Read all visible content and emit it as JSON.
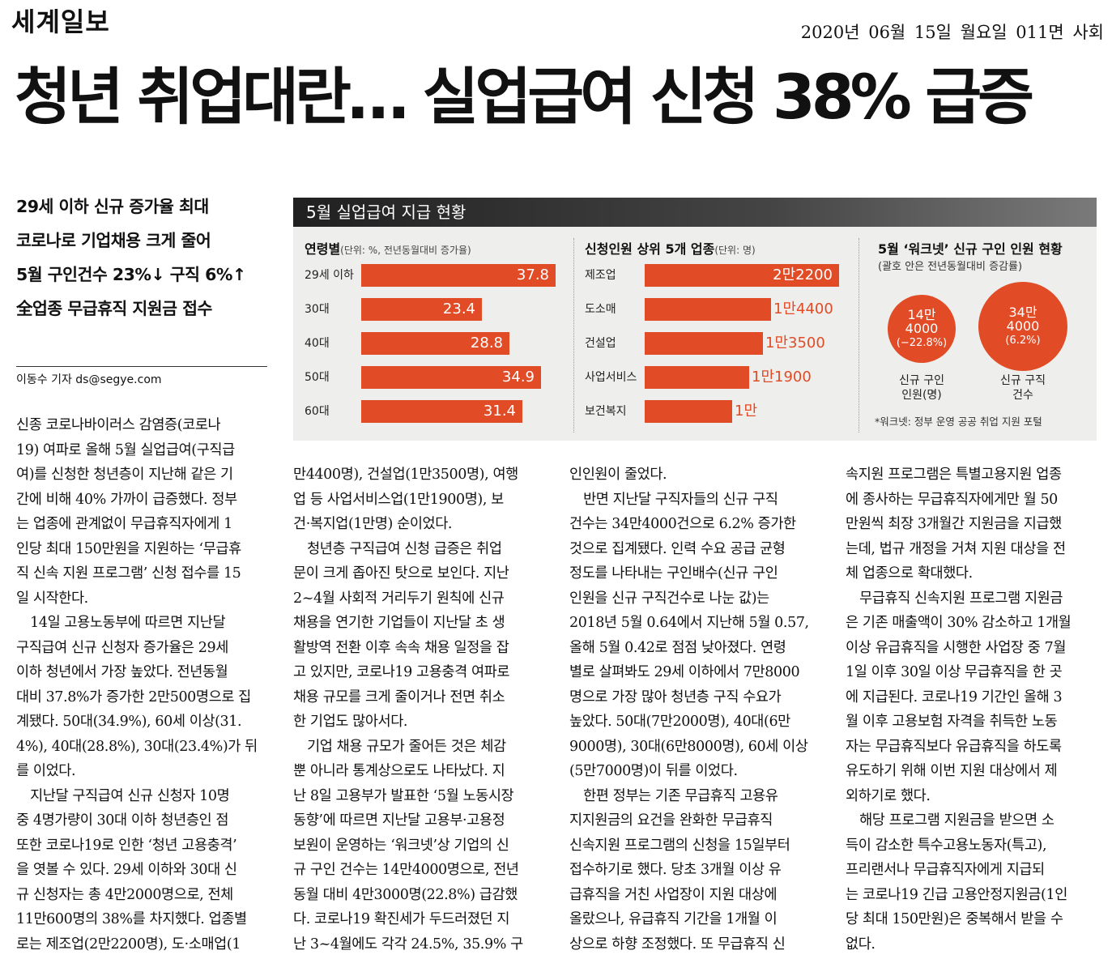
{
  "masthead": "세계일보",
  "dateline": "2020년 06월 15일 월요일 011면 사회",
  "headline": "청년 취업대란… 실업급여 신청 38% 급증",
  "subheads": [
    "29세 이하 신규 증가율 최대",
    "코로나로 기업채용 크게 줄어",
    "5월 구인건수 23%↓ 구직 6%↑",
    "全업종 무급휴직 지원금 접수"
  ],
  "byline": "이동수 기자 ds@segye.com",
  "infographic": {
    "title": "5월 실업급여 지급 현황",
    "age_section": {
      "title": "연령별",
      "unit": "(단위: %, 전년동월대비 증가율)"
    },
    "industry_section": {
      "title": "신청인원 상위 5개 업종",
      "unit": "(단위: 명)"
    },
    "worknet_section": {
      "title": "5월 ‘워크넷’ 신규 구인 인원 현황",
      "note": "(괄호 안은 전년동월대비 증감률)",
      "circles": [
        {
          "line1": "14만",
          "line2": "4000",
          "pct": "(−22.8%)",
          "label1": "신규 구인",
          "label2": "인원(명)"
        },
        {
          "line1": "34만",
          "line2": "4000",
          "pct": "(6.2%)",
          "label1": "신규 구직",
          "label2": "건수"
        }
      ],
      "footnote": "*워크넷: 정부 운영 공공 취업 지원 포털"
    }
  },
  "chart_data": [
    {
      "type": "bar",
      "title": "연령별",
      "categories": [
        "29세 이하",
        "30대",
        "40대",
        "50대",
        "60대"
      ],
      "values": [
        37.8,
        23.4,
        28.8,
        34.9,
        31.4
      ],
      "labels": [
        "37.8",
        "23.4",
        "28.8",
        "34.9",
        "31.4"
      ],
      "orientation": "horizontal"
    },
    {
      "type": "bar",
      "title": "신청인원 상위 5개 업종",
      "categories": [
        "제조업",
        "도소매",
        "건설업",
        "사업서비스",
        "보건복지"
      ],
      "values": [
        22200,
        14400,
        13500,
        11900,
        10000
      ],
      "labels": [
        "2만2200",
        "1만4400",
        "1만3500",
        "1만1900",
        "1만"
      ],
      "orientation": "horizontal"
    }
  ],
  "columns": [
    [
      "신종 코로나바이러스 감염증(코로나",
      "19) 여파로 올해 5월 실업급여(구직급",
      "여)를 신청한 청년층이 지난해 같은 기",
      "간에 비해 40% 가까이 급증했다. 정부",
      "는 업종에 관계없이 무급휴직자에게 1",
      "인당 최대 150만원을 지원하는 ‘무급휴",
      "직 신속 지원 프로그램’ 신청 접수를 15",
      "일 시작한다.",
      "　14일 고용노동부에 따르면 지난달",
      "구직급여 신규 신청자 증가율은 29세",
      "이하 청년에서 가장 높았다. 전년동월",
      "대비 37.8%가 증가한 2만500명으로 집",
      "계됐다. 50대(34.9%), 60세 이상(31.",
      "4%), 40대(28.8%), 30대(23.4%)가 뒤",
      "를 이었다.",
      "　지난달 구직급여 신규 신청자 10명",
      "중 4명가량이 30대 이하 청년층인 점",
      "또한 코로나19로 인한 ‘청년 고용충격’",
      "을 엿볼 수 있다. 29세 이하와 30대 신",
      "규 신청자는 총 4만2000명으로, 전체",
      "11만600명의 38%를 차지했다. 업종별",
      "로는 제조업(2만2200명), 도·소매업(1"
    ],
    [
      "만4400명), 건설업(1만3500명), 여행",
      "업 등 사업서비스업(1만1900명), 보",
      "건·복지업(1만명) 순이었다.",
      "　청년층 구직급여 신청 급증은 취업",
      "문이 크게 좁아진 탓으로 보인다. 지난",
      "2~4월 사회적 거리두기 원칙에 신규",
      "채용을 연기한 기업들이 지난달 초 생",
      "활방역 전환 이후 속속 채용 일정을 잡",
      "고 있지만, 코로나19 고용충격 여파로",
      "채용 규모를 크게 줄이거나 전면 취소",
      "한 기업도 많아서다.",
      "　기업 채용 규모가 줄어든 것은 체감",
      "뿐 아니라 통계상으로도 나타났다. 지",
      "난 8일 고용부가 발표한 ‘5월 노동시장",
      "동향’에 따르면 지난달 고용부·고용정",
      "보원이 운영하는 ‘워크넷’상 기업의 신",
      "규 구인 건수는 14만4000명으로, 전년",
      "동월 대비 4만3000명(22.8%) 급감했",
      "다. 코로나19 확진세가 두드러졌던 지",
      "난 3~4월에도 각각 24.5%, 35.9% 구"
    ],
    [
      "인인원이 줄었다.",
      "　반면 지난달 구직자들의 신규 구직",
      "건수는 34만4000건으로 6.2% 증가한",
      "것으로 집계됐다. 인력 수요 공급 균형",
      "정도를 나타내는 구인배수(신규 구인",
      "인원을 신규 구직건수로 나눈 값)는",
      "2018년 5월 0.64에서 지난해 5월 0.57,",
      "올해 5월 0.42로 점점 낮아졌다. 연령",
      "별로 살펴봐도 29세 이하에서 7만8000",
      "명으로 가장 많아 청년층 구직 수요가",
      "높았다. 50대(7만2000명), 40대(6만",
      "9000명), 30대(6만8000명), 60세 이상",
      "(5만7000명)이 뒤를 이었다.",
      "　한편 정부는 기존 무급휴직 고용유",
      "지지원금의 요건을 완화한 무급휴직",
      "신속지원 프로그램의 신청을 15일부터",
      "접수하기로 했다. 당초 3개월 이상 유",
      "급휴직을 거친 사업장이 지원 대상에",
      "올랐으나, 유급휴직 기간을 1개월 이",
      "상으로 하향 조정했다. 또 무급휴직 신"
    ],
    [
      "속지원 프로그램은 특별고용지원 업종",
      "에 종사하는 무급휴직자에게만 월 50",
      "만원씩 최장 3개월간 지원금을 지급했",
      "는데, 법규 개정을 거쳐 지원 대상을 전",
      "체 업종으로 확대했다.",
      "　무급휴직 신속지원 프로그램 지원금",
      "은 기존 매출액이 30% 감소하고 1개월",
      "이상 유급휴직을 시행한 사업장 중 7월",
      "1일 이후 30일 이상 무급휴직을 한 곳",
      "에 지급된다. 코로나19 기간인 올해 3",
      "월 이후 고용보험 자격을 취득한 노동",
      "자는 무급휴직보다 유급휴직을 하도록",
      "유도하기 위해 이번 지원 대상에서 제",
      "외하기로 했다.",
      "　해당 프로그램 지원금을 받으면 소",
      "득이 감소한 특수고용노동자(특고),",
      "프리랜서나 무급휴직자에게 지급되",
      "는 코로나19 긴급 고용안정지원금(1인",
      "당 최대 150만원)은 중복해서 받을 수",
      "없다."
    ]
  ]
}
